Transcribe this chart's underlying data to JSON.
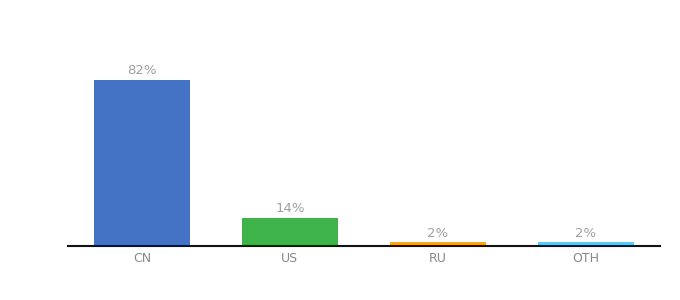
{
  "categories": [
    "CN",
    "US",
    "RU",
    "OTH"
  ],
  "values": [
    82,
    14,
    2,
    2
  ],
  "labels": [
    "82%",
    "14%",
    "2%",
    "2%"
  ],
  "bar_colors": [
    "#4472c4",
    "#3db34a",
    "#f5a623",
    "#5bc8f5"
  ],
  "background_color": "#ffffff",
  "label_color": "#a0a0a0",
  "label_fontsize": 9.5,
  "tick_fontsize": 9,
  "tick_color": "#888888",
  "ylim": [
    0,
    95
  ],
  "bar_width": 0.65,
  "xlim": [
    -0.5,
    3.5
  ]
}
